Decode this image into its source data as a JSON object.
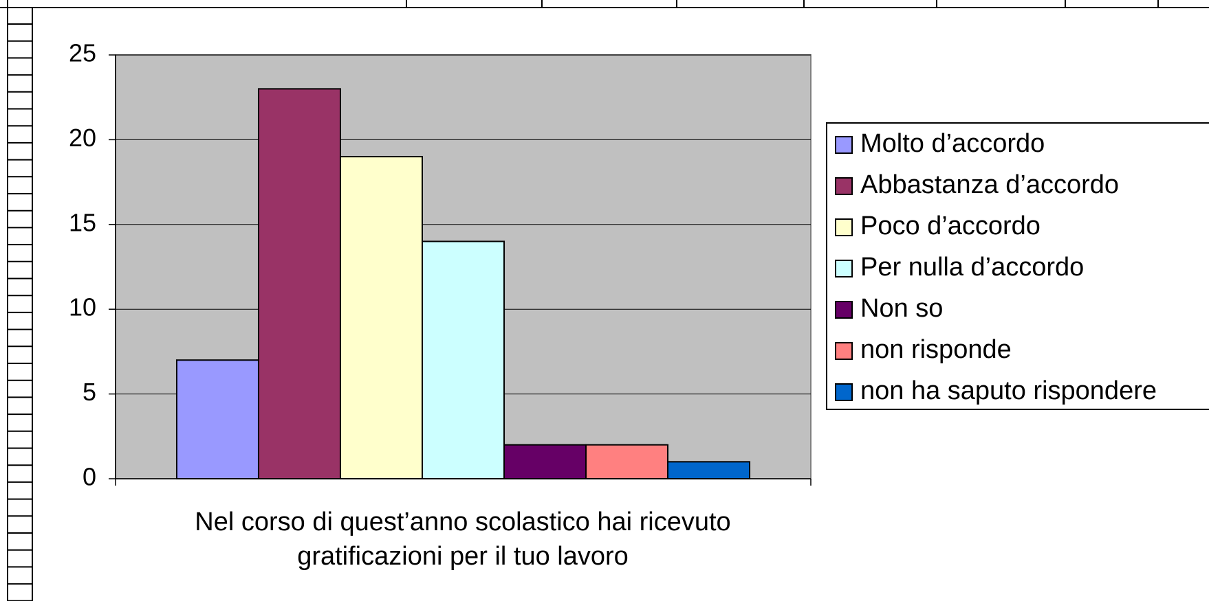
{
  "chart_data": {
    "type": "bar",
    "categories": [
      "Nel corso di quest’anno scolastico hai ricevuto gratificazioni per il tuo lavoro"
    ],
    "series": [
      {
        "name": "Molto d’accordo",
        "color": "#9999ff",
        "values": [
          7
        ]
      },
      {
        "name": "Abbastanza d’accordo",
        "color": "#993366",
        "values": [
          23
        ]
      },
      {
        "name": "Poco d’accordo",
        "color": "#ffffcc",
        "values": [
          19
        ]
      },
      {
        "name": "Per nulla d’accordo",
        "color": "#ccffff",
        "values": [
          14
        ]
      },
      {
        "name": "Non so",
        "color": "#660066",
        "values": [
          2
        ]
      },
      {
        "name": "non risponde",
        "color": "#ff8080",
        "values": [
          2
        ]
      },
      {
        "name": "non ha saputo rispondere",
        "color": "#0066cc",
        "values": [
          1
        ]
      }
    ],
    "ylim": [
      0,
      25
    ],
    "yticks": [
      0,
      5,
      10,
      15,
      20,
      25
    ],
    "grid": true,
    "legend": "right"
  }
}
